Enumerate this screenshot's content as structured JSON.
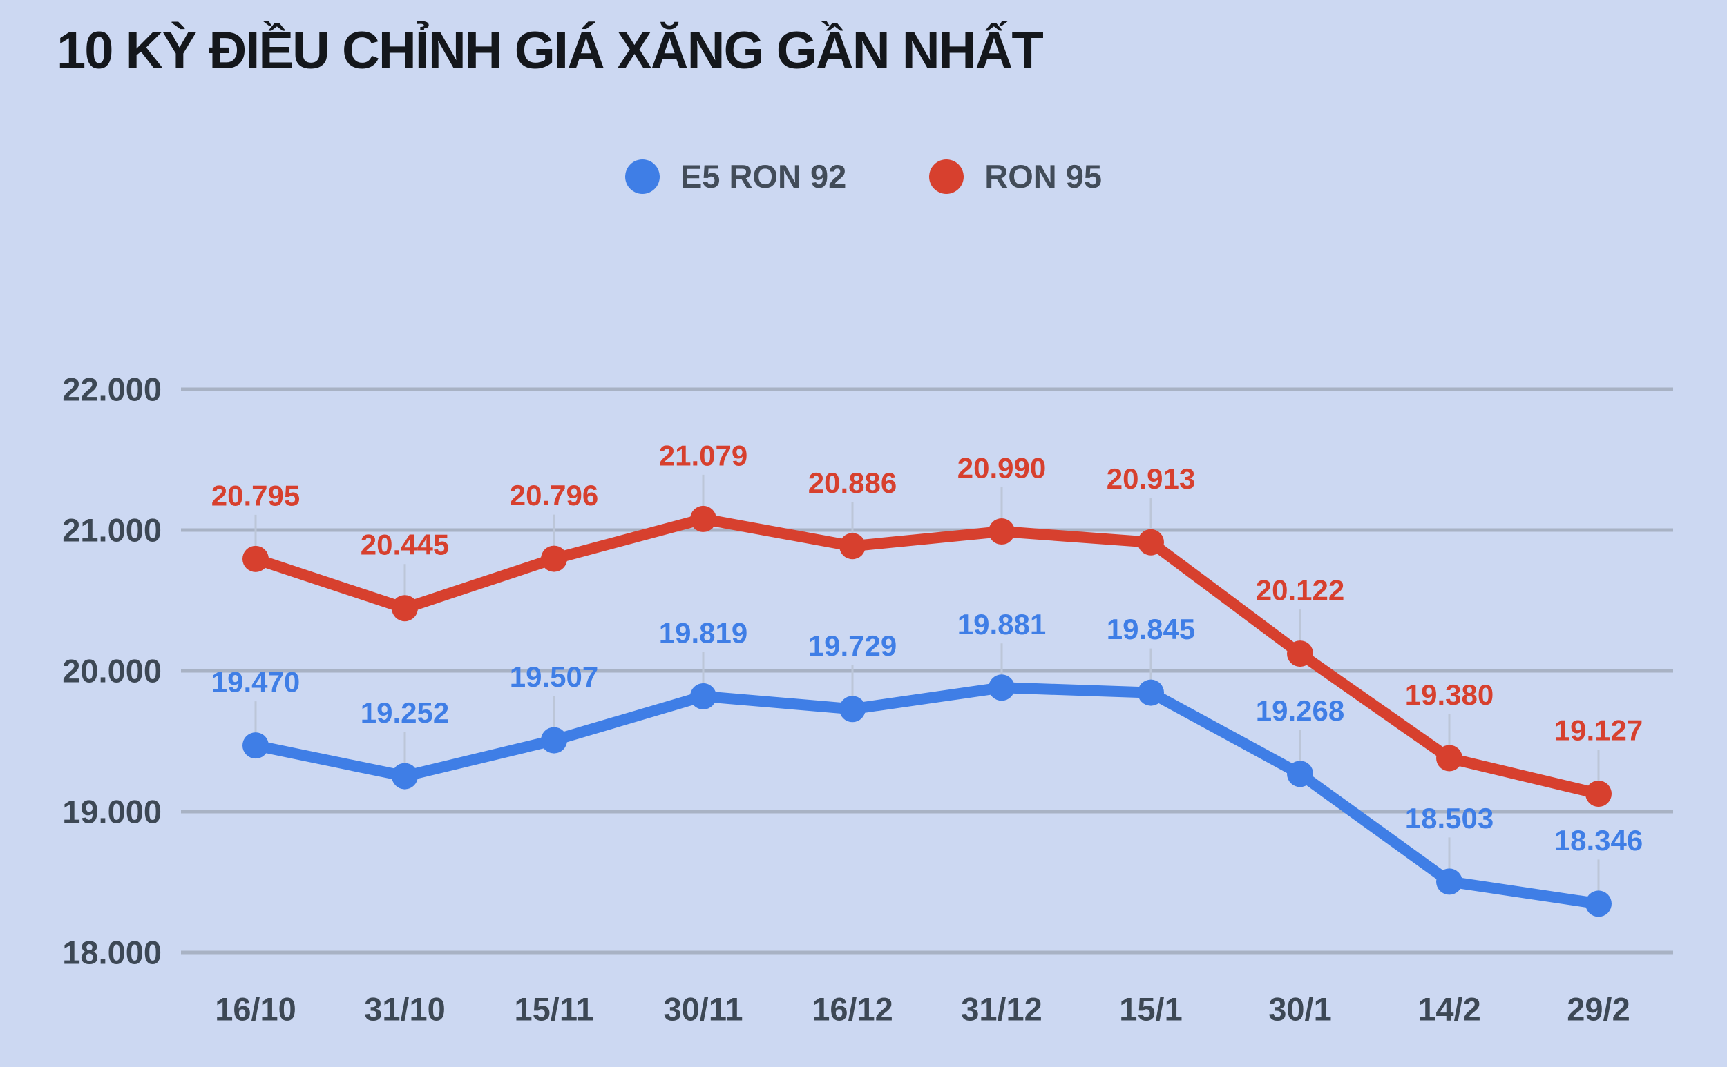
{
  "title": "10 KỲ ĐIỀU CHỈNH GIÁ XĂNG GẦN NHẤT",
  "legend": [
    {
      "label": "E5 RON 92",
      "color": "#3f7ee6"
    },
    {
      "label": "RON 95",
      "color": "#d7402e"
    }
  ],
  "colors": {
    "background": "#ccd8f2",
    "grid": "#a8b2c4",
    "leader": "#bcc6d8",
    "axis_text": "#3d4855",
    "title_text": "#14171c",
    "blue_series": "#3f7ee6",
    "red_series": "#d7402e"
  },
  "chart_data": {
    "type": "line",
    "categories": [
      "16/10",
      "31/10",
      "15/11",
      "30/11",
      "16/12",
      "31/12",
      "15/1",
      "30/1",
      "14/2",
      "29/2"
    ],
    "series": [
      {
        "name": "E5 RON 92",
        "color": "#3f7ee6",
        "values": [
          19470,
          19252,
          19507,
          19819,
          19729,
          19881,
          19845,
          19268,
          18503,
          18346
        ],
        "labels": [
          "19.470",
          "19.252",
          "19.507",
          "19.819",
          "19.729",
          "19.881",
          "19.845",
          "19.268",
          "18.503",
          "18.346"
        ]
      },
      {
        "name": "RON 95",
        "color": "#d7402e",
        "values": [
          20795,
          20445,
          20796,
          21079,
          20886,
          20990,
          20913,
          20122,
          19380,
          19127
        ],
        "labels": [
          "20.795",
          "20.445",
          "20.796",
          "21.079",
          "20.886",
          "20.990",
          "20.913",
          "20.122",
          "19.380",
          "19.127"
        ]
      }
    ],
    "title": "10 KỲ ĐIỀU CHỈNH GIÁ XĂNG GẦN NHẤT",
    "xlabel": "",
    "ylabel": "",
    "ylim": [
      18000,
      22000
    ],
    "ytick_labels": [
      "22.000",
      "21.000",
      "20.000",
      "19.000",
      "18.000"
    ],
    "grid": "horizontal",
    "legend_position": "top-center",
    "value_labels_shown": true
  }
}
